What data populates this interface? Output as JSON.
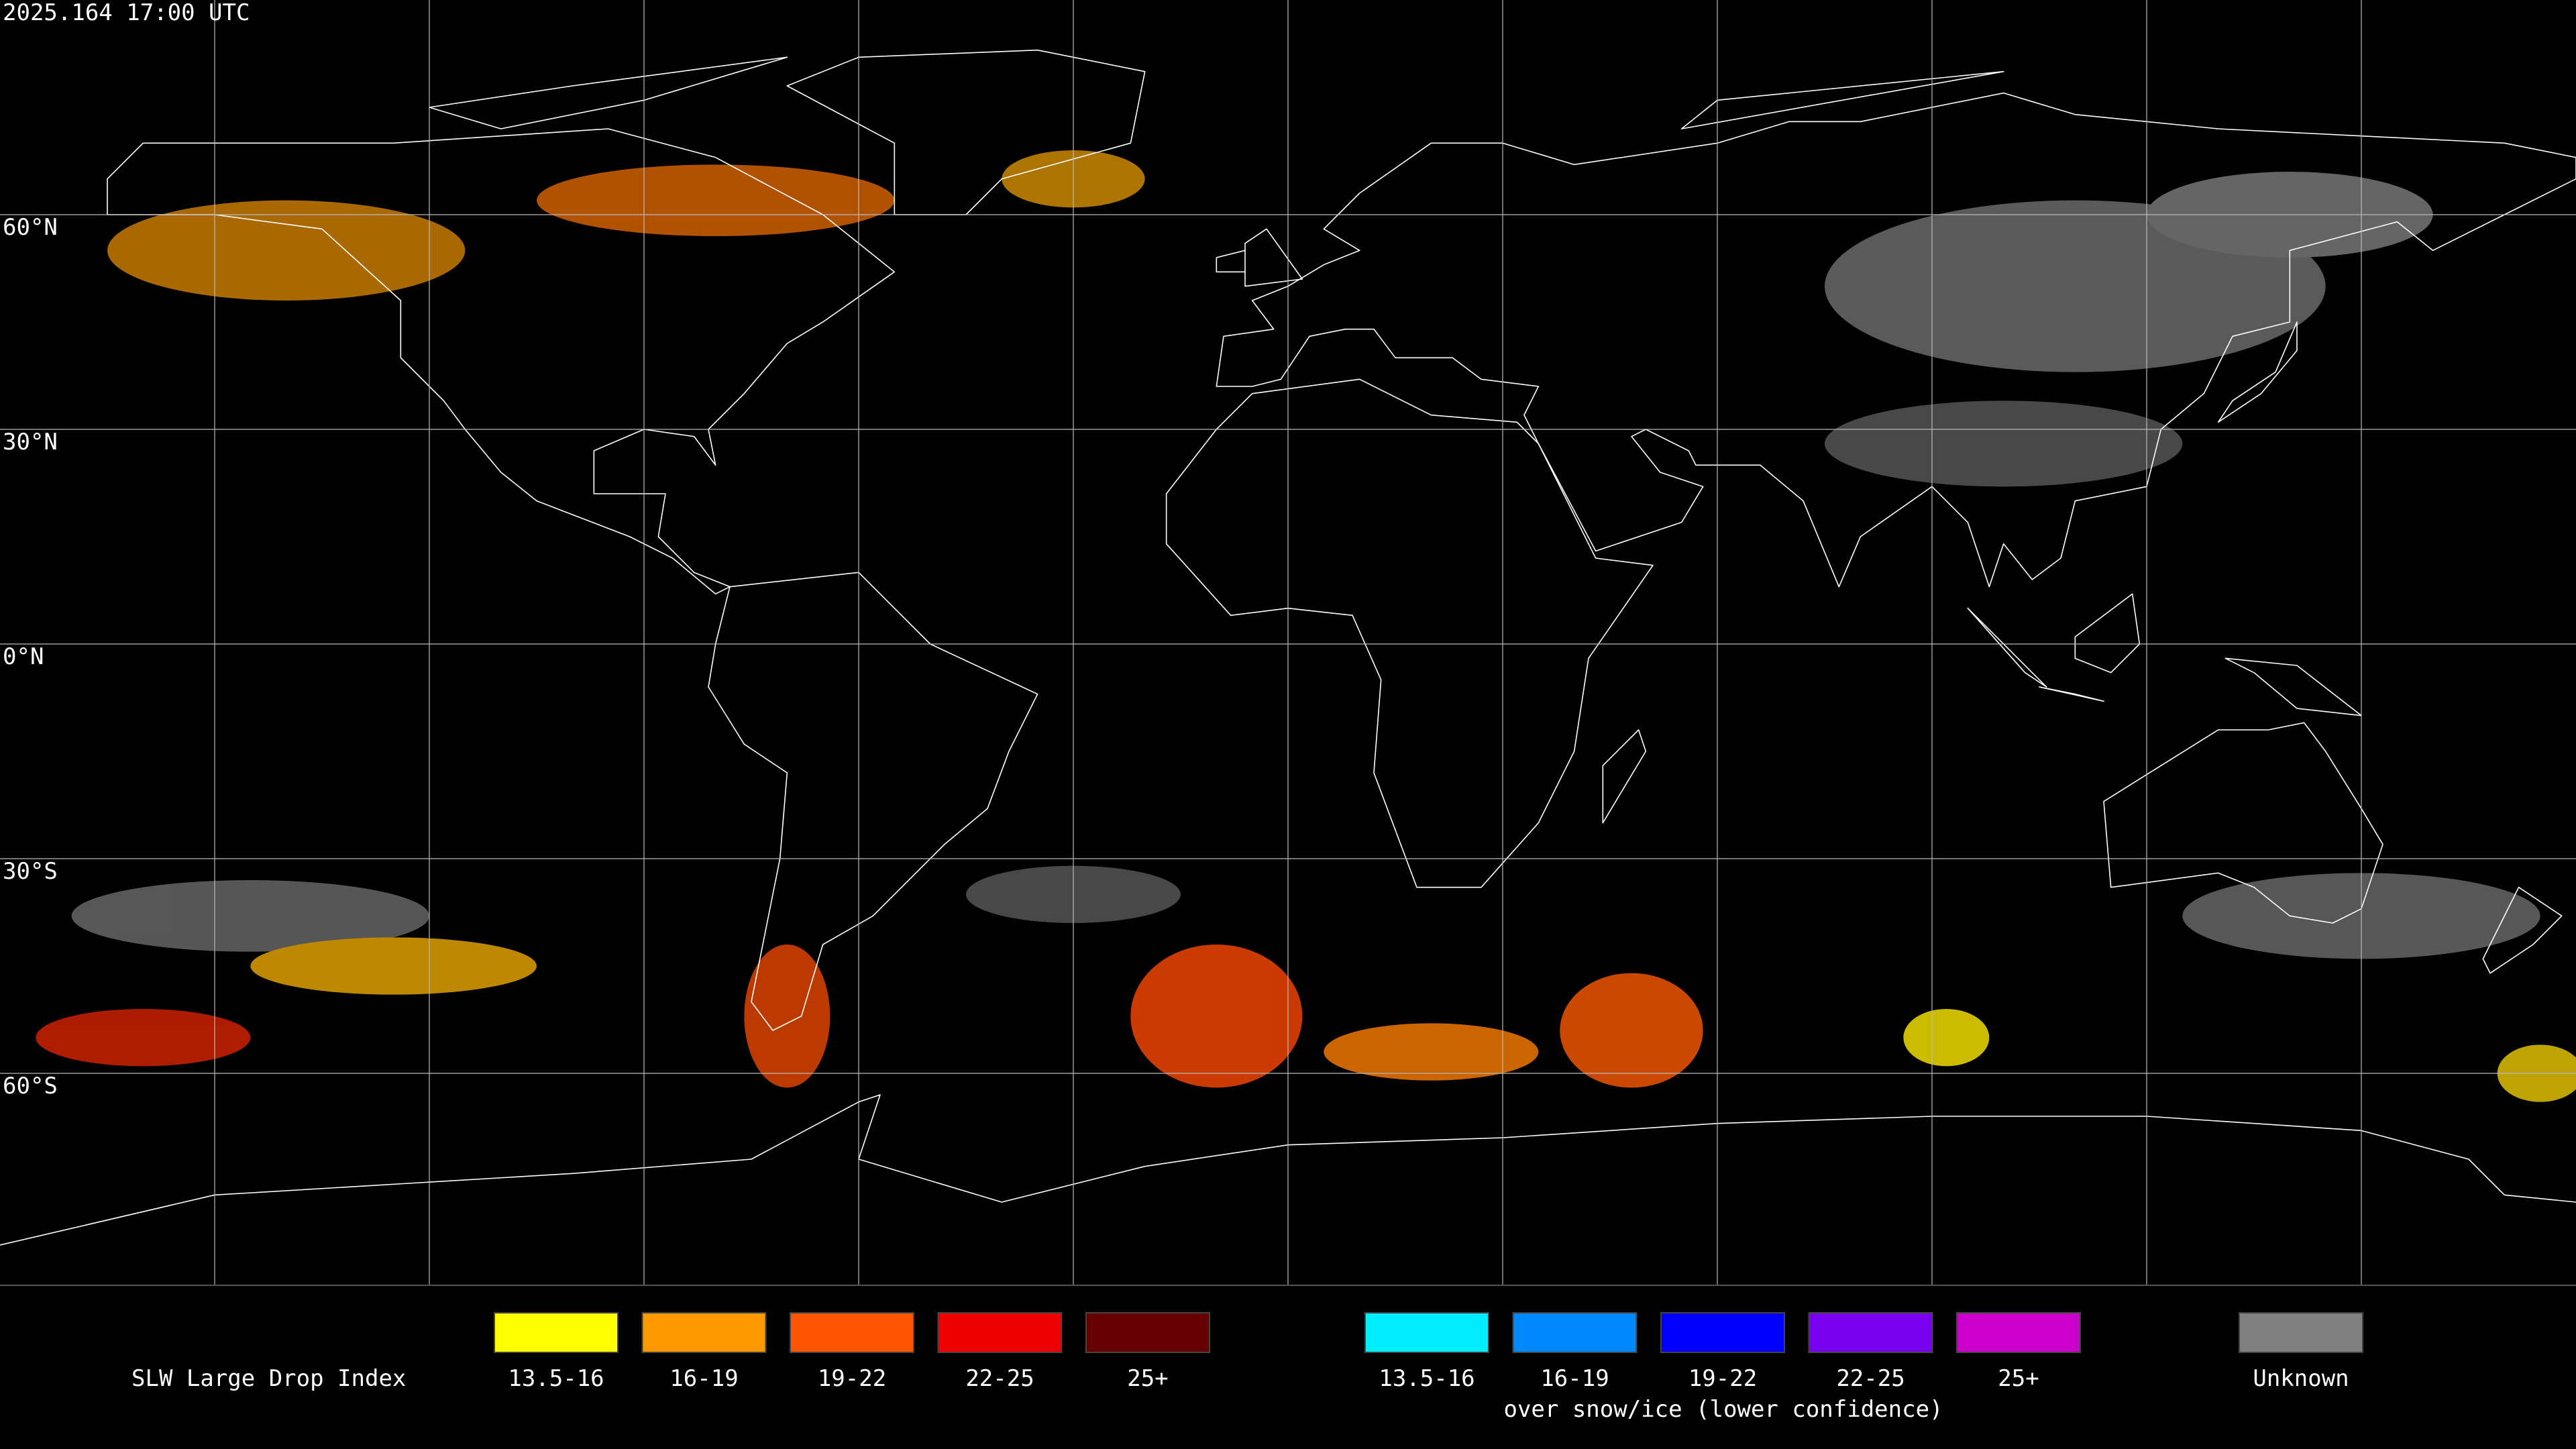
{
  "header": {
    "timestamp": "2025.164 17:00 UTC"
  },
  "map": {
    "latitude_labels": [
      "60°N",
      "30°N",
      "0°N",
      "30°S",
      "60°S"
    ]
  },
  "legend": {
    "title": "SLW Large Drop Index",
    "primary": [
      {
        "label": "13.5-16",
        "color": "#ffff00"
      },
      {
        "label": "16-19",
        "color": "#ff9900"
      },
      {
        "label": "19-22",
        "color": "#ff5500"
      },
      {
        "label": "22-25",
        "color": "#ee0000"
      },
      {
        "label": "25+",
        "color": "#660000"
      }
    ],
    "snow_ice": {
      "items": [
        {
          "label": "13.5-16",
          "color": "#00eeff"
        },
        {
          "label": "16-19",
          "color": "#0088ff"
        },
        {
          "label": "19-22",
          "color": "#0000ff"
        },
        {
          "label": "22-25",
          "color": "#7700ee"
        },
        {
          "label": "25+",
          "color": "#cc00cc"
        }
      ],
      "caption": "over snow/ice (lower confidence)"
    },
    "unknown": {
      "label": "Unknown",
      "color": "#808080"
    }
  }
}
